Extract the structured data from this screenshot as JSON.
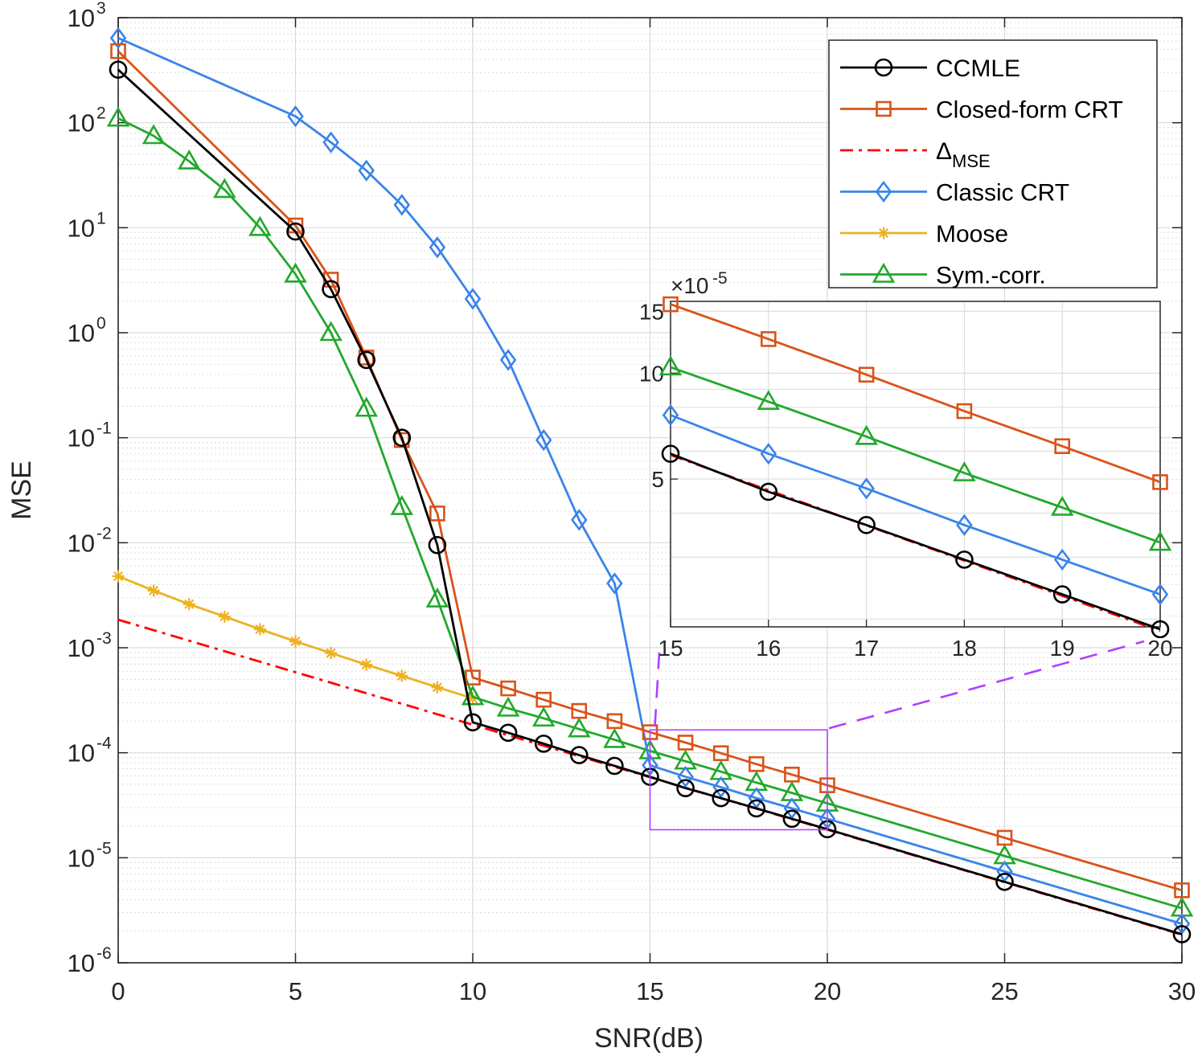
{
  "chart_data": {
    "type": "line",
    "xlabel": "SNR(dB)",
    "ylabel": "MSE",
    "xlim": [
      0,
      30
    ],
    "ylim": [
      1e-06,
      1000
    ],
    "yscale": "log",
    "x_ticks": [
      "0",
      "5",
      "10",
      "15",
      "20",
      "25",
      "30"
    ],
    "y_ticks": [
      {
        "base": "10",
        "exp": "3"
      },
      {
        "base": "10",
        "exp": "2"
      },
      {
        "base": "10",
        "exp": "1"
      },
      {
        "base": "10",
        "exp": "0"
      },
      {
        "base": "10",
        "exp": "-1"
      },
      {
        "base": "10",
        "exp": "-2"
      },
      {
        "base": "10",
        "exp": "-3"
      },
      {
        "base": "10",
        "exp": "-4"
      },
      {
        "base": "10",
        "exp": "-5"
      },
      {
        "base": "10",
        "exp": "-6"
      }
    ],
    "grid": true,
    "legend_position": "top-right",
    "series": [
      {
        "name": "CCMLE",
        "color": "#000000",
        "marker": "circle",
        "dash": "solid",
        "x": [
          0,
          5,
          6,
          7,
          8,
          9,
          10,
          11,
          12,
          13,
          14,
          15,
          16,
          17,
          18,
          19,
          20,
          25,
          30
        ],
        "y": [
          320,
          9.2,
          2.6,
          0.55,
          0.1,
          0.0095,
          0.000195,
          0.000155,
          0.000122,
          9.5e-05,
          7.5e-05,
          5.9e-05,
          4.6e-05,
          3.7e-05,
          2.95e-05,
          2.35e-05,
          1.87e-05,
          5.9e-06,
          1.87e-06
        ]
      },
      {
        "name": "Closed-form CRT",
        "color": "#d95319",
        "marker": "square",
        "dash": "solid",
        "x": [
          0,
          5,
          6,
          7,
          8,
          9,
          10,
          11,
          12,
          13,
          14,
          15,
          16,
          17,
          18,
          19,
          20,
          25,
          30
        ],
        "y": [
          480,
          10.5,
          3.2,
          0.58,
          0.095,
          0.019,
          0.00052,
          0.00041,
          0.00032,
          0.00025,
          0.0002,
          0.000157,
          0.000125,
          9.9e-05,
          7.8e-05,
          6.2e-05,
          4.9e-05,
          1.55e-05,
          4.9e-06
        ]
      },
      {
        "name": "Δ",
        "name_sub": "MSE",
        "color": "#ff0000",
        "marker": "none",
        "dash": "dashdot",
        "x": [
          0,
          10,
          15,
          20,
          25,
          30
        ],
        "y": [
          0.00185,
          0.000185,
          5.85e-05,
          1.85e-05,
          5.85e-06,
          1.85e-06
        ]
      },
      {
        "name": "Classic CRT",
        "color": "#3a84e9",
        "marker": "diamond",
        "dash": "solid",
        "x": [
          0,
          5,
          6,
          7,
          8,
          9,
          10,
          11,
          12,
          13,
          14,
          15,
          16,
          17,
          18,
          19,
          20,
          25,
          30
        ],
        "y": [
          640,
          115,
          65,
          35,
          16.5,
          6.5,
          2.1,
          0.55,
          0.095,
          0.0165,
          0.0041,
          7.6e-05,
          5.9e-05,
          4.7e-05,
          3.7e-05,
          2.95e-05,
          2.35e-05,
          7.4e-06,
          2.35e-06
        ]
      },
      {
        "name": "Moose",
        "color": "#edb120",
        "marker": "asterisk",
        "dash": "solid",
        "x": [
          0,
          1,
          2,
          3,
          4,
          5,
          6,
          7,
          8,
          9,
          10
        ],
        "y": [
          0.0048,
          0.0035,
          0.0026,
          0.00198,
          0.0015,
          0.00115,
          0.00089,
          0.00069,
          0.00054,
          0.00042,
          0.00033
        ]
      },
      {
        "name": "Sym.-corr.",
        "color": "#22a82a",
        "marker": "triangle",
        "dash": "solid",
        "x": [
          0,
          1,
          2,
          3,
          4,
          5,
          6,
          7,
          8,
          9,
          10,
          11,
          12,
          13,
          14,
          15,
          16,
          17,
          18,
          19,
          20,
          25,
          30
        ],
        "y": [
          110,
          75,
          43,
          23,
          10,
          3.6,
          1.0,
          0.19,
          0.022,
          0.0029,
          0.00034,
          0.000265,
          0.000213,
          0.000168,
          0.000133,
          0.000104,
          8.3e-05,
          6.6e-05,
          5.2e-05,
          4.15e-05,
          3.3e-05,
          1.04e-05,
          3.3e-06
        ]
      }
    ],
    "zoom_box": {
      "xlim": [
        15,
        20
      ],
      "ylim": [
        1.85e-05,
        0.000165
      ],
      "color": "#b040ff"
    },
    "inset": {
      "xlim": [
        15,
        20
      ],
      "ylim": [
        1.9e-05,
        0.00016
      ],
      "yscale": "log",
      "x_ticks": [
        "15",
        "16",
        "17",
        "18",
        "19",
        "20"
      ],
      "y_ticks": [
        {
          "value": 0.00015,
          "label": "15"
        },
        {
          "value": 0.0001,
          "label": "10"
        },
        {
          "value": 5e-05,
          "label": "5"
        }
      ],
      "y_multiplier": "×10",
      "y_multiplier_exp": "-5"
    }
  }
}
